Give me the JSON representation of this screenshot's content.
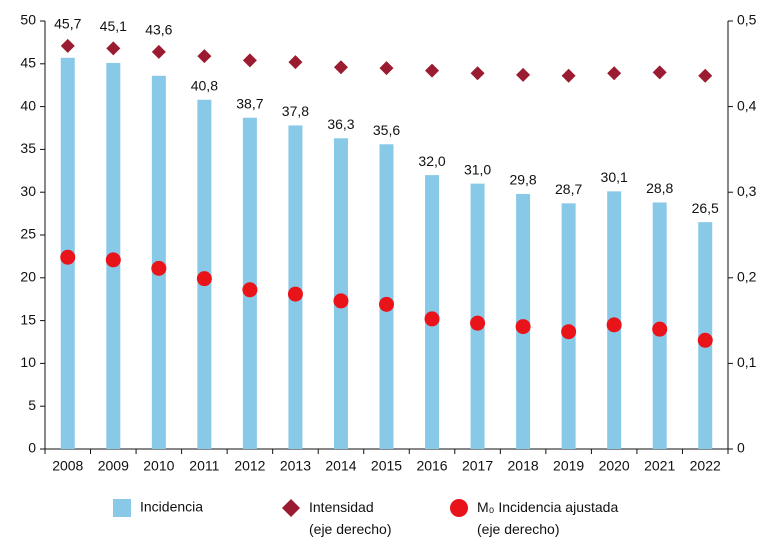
{
  "chart_data": {
    "type": "bar_combo",
    "categories": [
      "2008",
      "2009",
      "2010",
      "2011",
      "2012",
      "2013",
      "2014",
      "2015",
      "2016",
      "2017",
      "2018",
      "2019",
      "2020",
      "2021",
      "2022"
    ],
    "series": [
      {
        "name": "Incidencia",
        "color": "#89c9e8",
        "kind": "bar",
        "values": [
          45.7,
          45.1,
          43.6,
          40.8,
          38.7,
          37.8,
          36.3,
          35.6,
          32.0,
          31.0,
          29.8,
          28.7,
          30.1,
          28.8,
          26.5
        ],
        "value_labels": [
          "45,7",
          "45,1",
          "43,6",
          "40,8",
          "38,7",
          "37,8",
          "36,3",
          "35,6",
          "32,0",
          "31,0",
          "29,8",
          "28,7",
          "30,1",
          "28,8",
          "26,5"
        ]
      },
      {
        "name": "Intensidad (eje derecho)",
        "color": "#9b1b30",
        "kind": "diamond",
        "axis": "y2",
        "values": [
          0.471,
          0.468,
          0.464,
          0.459,
          0.454,
          0.452,
          0.446,
          0.445,
          0.442,
          0.439,
          0.437,
          0.436,
          0.439,
          0.44,
          0.436
        ]
      },
      {
        "name": "M₀ Incidencia ajustada (eje derecho)",
        "color": "#e8141a",
        "kind": "circle",
        "axis": "y2",
        "values": [
          0.224,
          0.221,
          0.211,
          0.199,
          0.186,
          0.181,
          0.173,
          0.169,
          0.152,
          0.147,
          0.143,
          0.137,
          0.145,
          0.14,
          0.127
        ]
      }
    ],
    "ylim": [
      0,
      50
    ],
    "yticks": [
      0,
      5,
      10,
      15,
      20,
      25,
      30,
      35,
      40,
      45,
      50
    ],
    "y2lim": [
      0,
      0.5
    ],
    "y2ticks": [
      0,
      {
        "value": 0.1,
        "label": "0,1"
      },
      {
        "value": 0.2,
        "label": "0,2"
      },
      {
        "value": 0.3,
        "label": "0,3"
      },
      {
        "value": 0.4,
        "label": "0,4"
      },
      {
        "value": 0.5,
        "label": "0,5"
      }
    ],
    "grid": false
  }
}
